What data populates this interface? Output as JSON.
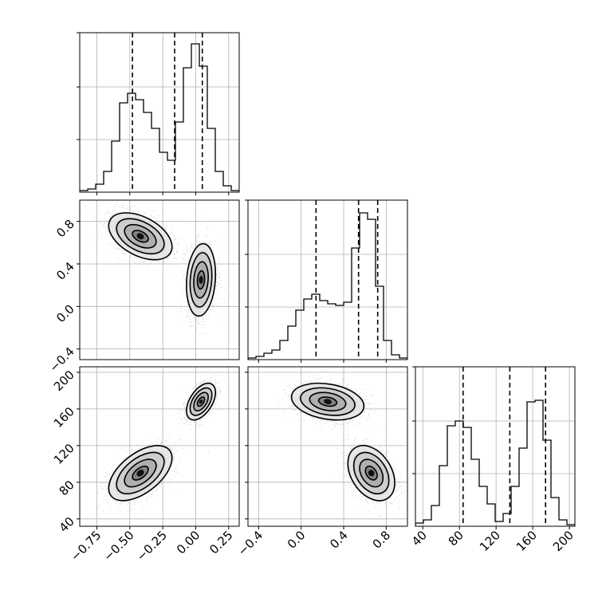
{
  "chart_data": {
    "type": "corner",
    "grid": true,
    "colors": {
      "hist": "#000000",
      "points": "#7f7f7f",
      "grid": "#b0b0b0"
    },
    "params": [
      {
        "range": [
          -0.88,
          0.33
        ],
        "ticks": [
          -0.75,
          -0.5,
          -0.25,
          0.0,
          0.25
        ],
        "tick_labels": [
          "−0.75",
          "−0.50",
          "−0.25",
          "0.00",
          "0.25"
        ],
        "quantiles": [
          -0.48,
          -0.16,
          0.05
        ],
        "hist": [
          0.01,
          0.02,
          0.05,
          0.13,
          0.32,
          0.56,
          0.62,
          0.58,
          0.5,
          0.4,
          0.25,
          0.2,
          0.44,
          0.78,
          0.93,
          0.79,
          0.4,
          0.13,
          0.04,
          0.01
        ]
      },
      {
        "range": [
          -0.5,
          1.0
        ],
        "ticks": [
          -0.4,
          0.0,
          0.4,
          0.8
        ],
        "tick_labels": [
          "−0.4",
          "0.0",
          "0.4",
          "0.8"
        ],
        "quantiles": [
          0.14,
          0.54,
          0.72
        ],
        "hist": [
          0.01,
          0.02,
          0.04,
          0.06,
          0.12,
          0.21,
          0.31,
          0.38,
          0.41,
          0.37,
          0.35,
          0.34,
          0.36,
          0.7,
          0.92,
          0.88,
          0.46,
          0.12,
          0.03,
          0.01
        ]
      },
      {
        "range": [
          32,
          206
        ],
        "ticks": [
          40,
          80,
          120,
          160,
          200
        ],
        "tick_labels": [
          "40",
          "80",
          "120",
          "160",
          "200"
        ],
        "quantiles": [
          84,
          135,
          174
        ],
        "hist": [
          0.02,
          0.04,
          0.13,
          0.38,
          0.63,
          0.66,
          0.62,
          0.42,
          0.25,
          0.14,
          0.03,
          0.08,
          0.25,
          0.49,
          0.78,
          0.79,
          0.54,
          0.18,
          0.04,
          0.01
        ]
      }
    ],
    "modes": [
      {
        "x": [
          -0.42,
          0.66,
          90
        ],
        "sd": [
          0.12,
          0.11,
          15
        ],
        "corr": {
          "0_1": -0.45,
          "0_2": 0.55,
          "1_2": -0.35
        }
      },
      {
        "x": [
          0.04,
          0.25,
          168
        ],
        "sd": [
          0.055,
          0.17,
          10
        ],
        "corr": {
          "0_1": 0.15,
          "0_2": 0.5,
          "1_2": -0.25
        }
      }
    ]
  }
}
